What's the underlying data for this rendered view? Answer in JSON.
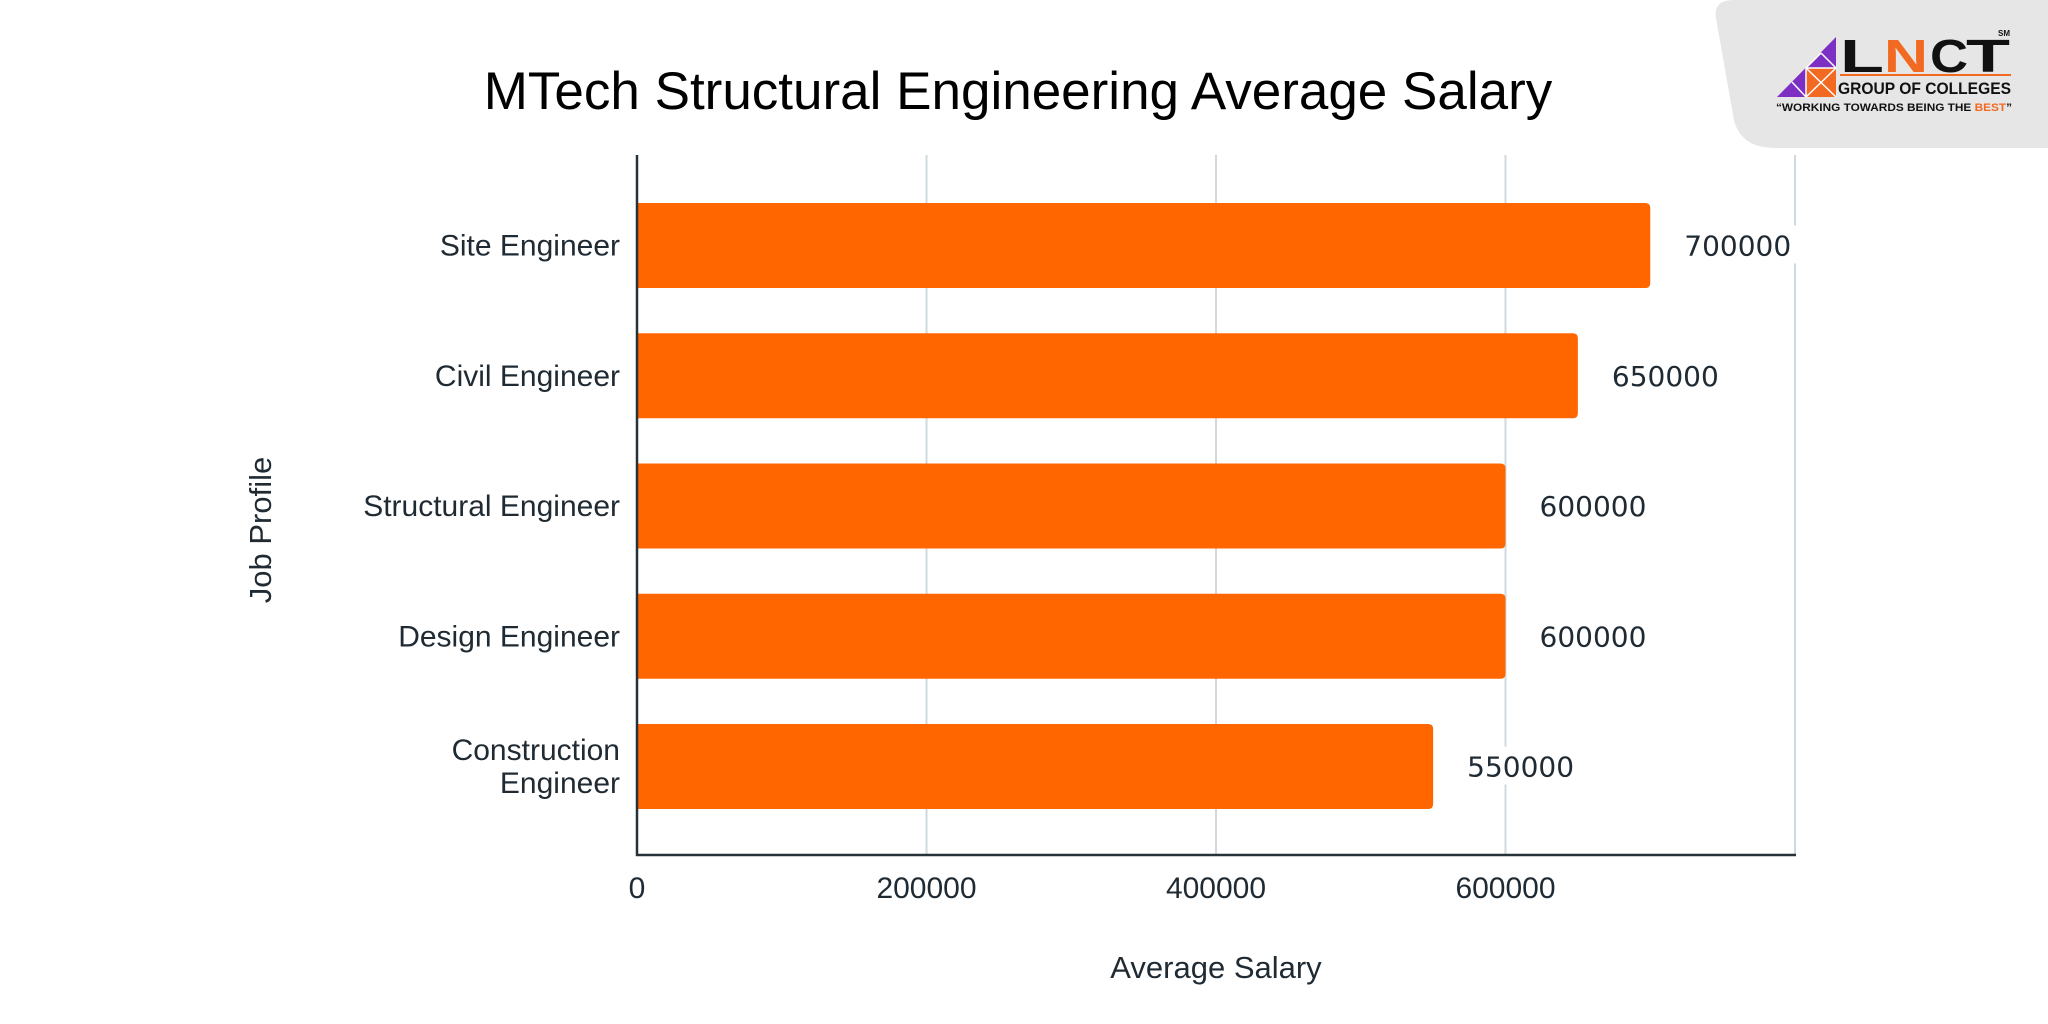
{
  "logo": {
    "letters": [
      "L",
      "N",
      "C",
      "T"
    ],
    "mark": "SM",
    "subtitle": "GROUP OF COLLEGES",
    "tagline_prefix": "“WORKING TOWARDS BEING THE ",
    "tagline_highlight": "BEST",
    "tagline_suffix": "”",
    "colors": {
      "purple": "#7d2fc4",
      "orange": "#f26a21",
      "dark": "#111111",
      "panel": "#e6e6e6"
    }
  },
  "chart_data": {
    "type": "bar",
    "orientation": "horizontal",
    "title": "MTech Structural Engineering Average Salary",
    "xlabel": "Average Salary",
    "ylabel": "Job Profile",
    "categories": [
      "Site Engineer",
      "Civil Engineer",
      "Structural Engineer",
      "Design Engineer",
      "Construction Engineer"
    ],
    "category_lines": [
      [
        "Site Engineer"
      ],
      [
        "Civil Engineer"
      ],
      [
        "Structural Engineer"
      ],
      [
        "Design Engineer"
      ],
      [
        "Construction",
        "Engineer"
      ]
    ],
    "values": [
      700000,
      650000,
      600000,
      600000,
      550000
    ],
    "data_labels": [
      "700000",
      "650000",
      "600000",
      "600000",
      "550000"
    ],
    "xlim": [
      0,
      800000
    ],
    "xticks": [
      0,
      200000,
      400000,
      600000
    ],
    "xtick_labels": [
      "0",
      "200000",
      "400000",
      "600000"
    ],
    "gridlines": [
      200000,
      400000,
      600000,
      800000
    ],
    "grid": true,
    "legend": "none",
    "bar_color": "#ff6600",
    "grid_color": "#cfd8dc",
    "axis_color": "#263238"
  }
}
